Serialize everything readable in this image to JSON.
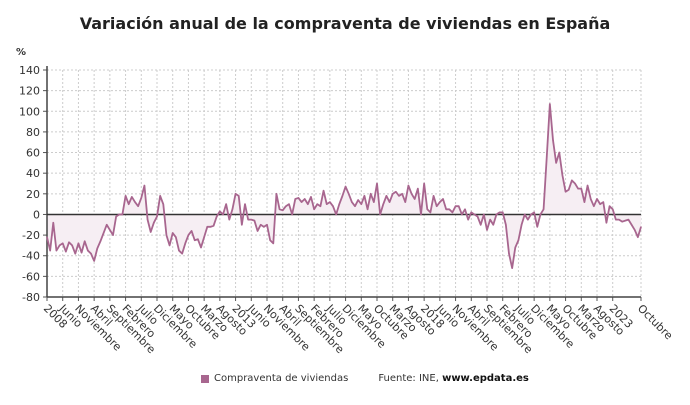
{
  "chart_data": {
    "type": "area",
    "title": "Variación anual de la compraventa de viviendas en España",
    "ylabel": "%",
    "ylim": [
      -80,
      140
    ],
    "yticks": [
      140,
      120,
      100,
      80,
      60,
      40,
      20,
      0,
      -20,
      -40,
      -60,
      -80
    ],
    "x_range": [
      "2008-01",
      "2023-10"
    ],
    "xtick_labels": [
      "2008",
      "Junio",
      "Noviembre",
      "Abril",
      "Septiembre",
      "Febrero",
      "Julio",
      "Diciembre",
      "Mayo",
      "Octubre",
      "Marzo",
      "Agosto",
      "2013",
      "Junio",
      "Noviembre",
      "Abril",
      "Septiembre",
      "Febrero",
      "Julio",
      "Diciembre",
      "Mayo",
      "Octubre",
      "Marzo",
      "Agosto",
      "2018",
      "Junio",
      "Noviembre",
      "Abril",
      "Septiembre",
      "Febrero",
      "Julio",
      "Diciembre",
      "Mayo",
      "Octubre",
      "Marzo",
      "Agosto",
      "2023",
      "Octubre"
    ],
    "grid": true,
    "legend": "bottom",
    "series": [
      {
        "name": "Compraventa de viviendas",
        "color": "#a8668f",
        "values": [
          -22,
          -35,
          -8,
          -35,
          -30,
          -28,
          -36,
          -27,
          -30,
          -38,
          -28,
          -37,
          -26,
          -35,
          -38,
          -45,
          -33,
          -26,
          -18,
          -10,
          -15,
          -20,
          -2,
          0,
          0,
          18,
          10,
          17,
          12,
          8,
          16,
          28,
          -5,
          -17,
          -8,
          -2,
          18,
          10,
          -20,
          -30,
          -18,
          -22,
          -35,
          -38,
          -28,
          -20,
          -16,
          -25,
          -24,
          -32,
          -22,
          -12,
          -12,
          -11,
          -2,
          3,
          0,
          10,
          -5,
          5,
          20,
          18,
          -10,
          10,
          -5,
          -5,
          -6,
          -16,
          -10,
          -12,
          -10,
          -25,
          -28,
          20,
          5,
          4,
          8,
          10,
          0,
          15,
          16,
          12,
          15,
          10,
          17,
          5,
          10,
          8,
          23,
          10,
          12,
          8,
          0,
          10,
          18,
          27,
          20,
          12,
          8,
          14,
          10,
          18,
          5,
          20,
          12,
          30,
          0,
          10,
          18,
          12,
          20,
          22,
          18,
          20,
          12,
          28,
          20,
          15,
          25,
          0,
          30,
          5,
          2,
          18,
          8,
          12,
          15,
          5,
          5,
          2,
          8,
          8,
          0,
          5,
          -5,
          2,
          0,
          -2,
          -10,
          0,
          -15,
          -5,
          -10,
          0,
          2,
          2,
          -10,
          -38,
          -52,
          -32,
          -25,
          -10,
          0,
          -5,
          0,
          2,
          -12,
          0,
          5,
          55,
          107,
          72,
          50,
          60,
          38,
          22,
          24,
          33,
          30,
          25,
          25,
          12,
          28,
          15,
          8,
          15,
          10,
          12,
          -8,
          8,
          5,
          -5,
          -5,
          -7,
          -6,
          -5,
          -10,
          -15,
          -22,
          -12
        ]
      }
    ]
  },
  "legend": {
    "label": "Compraventa de viviendas"
  },
  "source": {
    "prefix": "Fuente: INE, ",
    "site": "www.epdata.es"
  }
}
